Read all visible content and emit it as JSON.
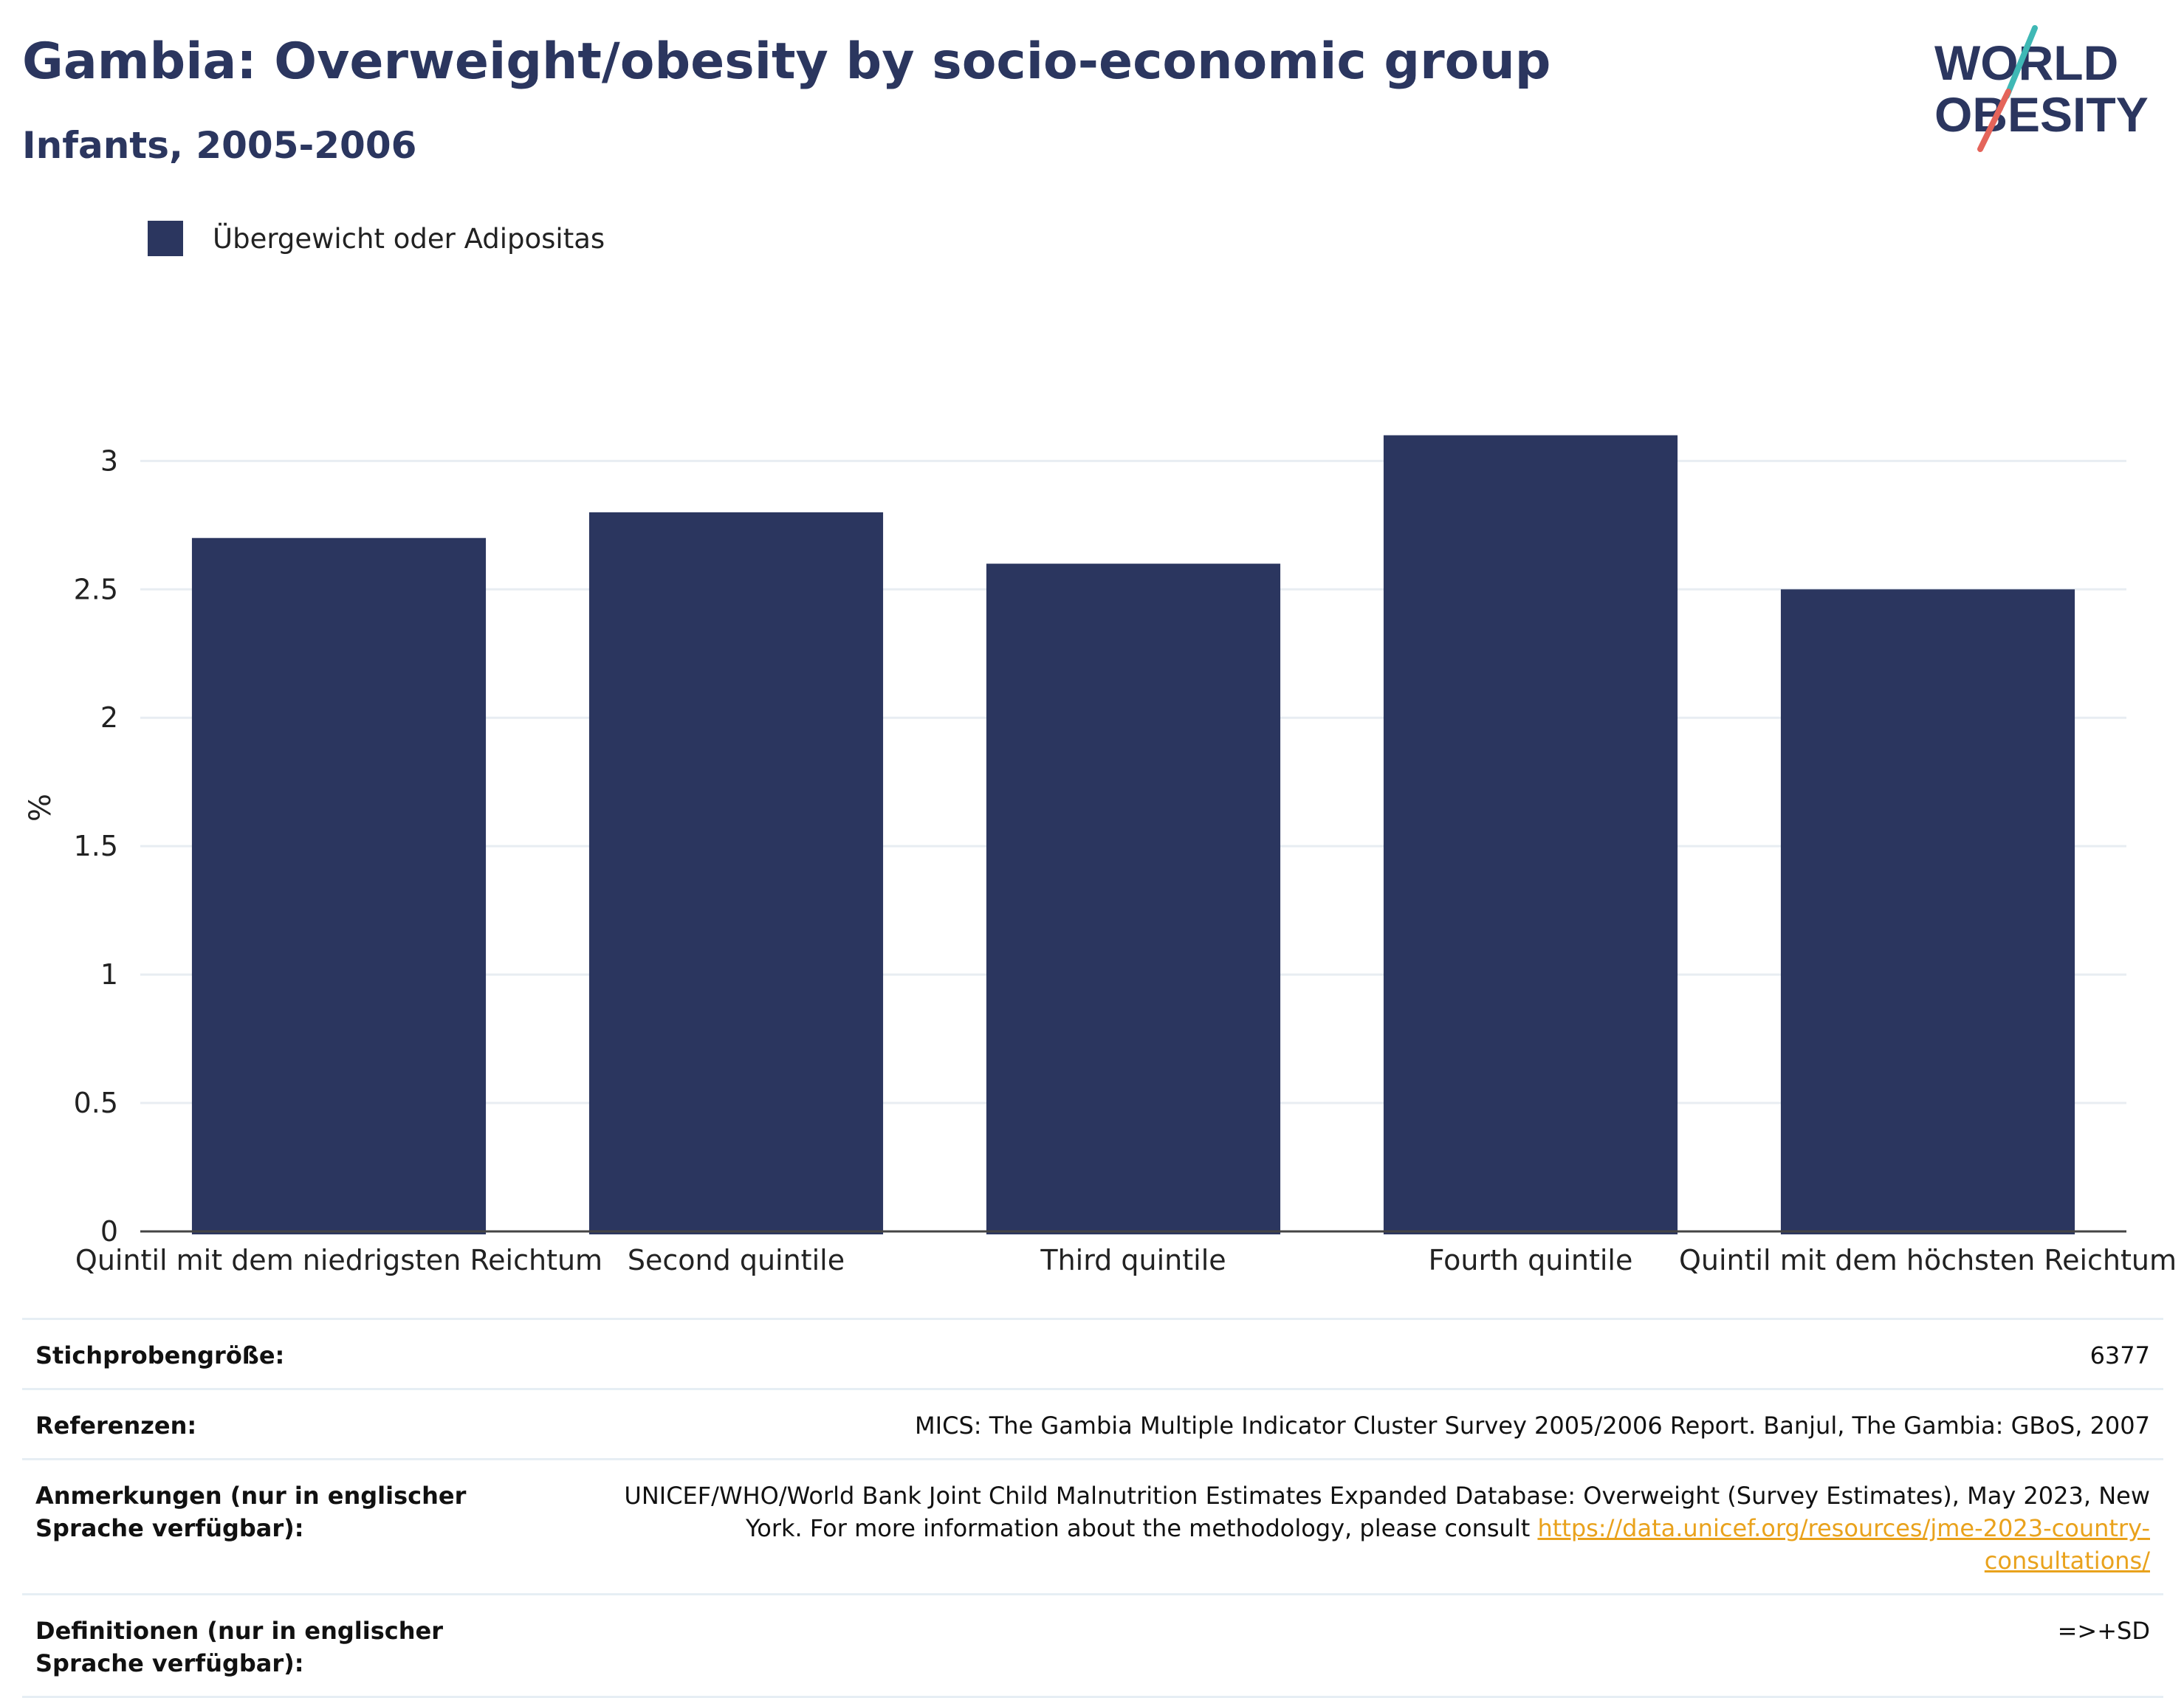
{
  "header": {
    "title": "Gambia: Overweight/obesity by socio-economic group",
    "subtitle": "Infants, 2005-2006"
  },
  "logo": {
    "line1": "WORLD",
    "line2": "OBESITY"
  },
  "legend": {
    "label": "Übergewicht oder Adipositas",
    "color": "#2b365f"
  },
  "chart_data": {
    "type": "bar",
    "categories": [
      "Quintil mit dem niedrigsten Reichtum",
      "Second quintile",
      "Third quintile",
      "Fourth quintile",
      "Quintil mit dem höchsten Reichtum"
    ],
    "series": [
      {
        "name": "Übergewicht oder Adipositas",
        "values": [
          2.7,
          2.8,
          2.6,
          3.1,
          2.5
        ],
        "color": "#2b365f"
      }
    ],
    "ylabel": "%",
    "ylim": [
      0,
      3.3
    ],
    "yticks": [
      0,
      0.5,
      1,
      1.5,
      2,
      2.5,
      3
    ],
    "ytick_labels": [
      "0",
      "0.5",
      "1",
      "1.5",
      "2",
      "2.5",
      "3"
    ],
    "grid": true,
    "legend_position": "top-left"
  },
  "info": {
    "rows": [
      {
        "key": "Stichprobengröße:",
        "value": "6377"
      },
      {
        "key": "Referenzen:",
        "value": "MICS: The Gambia Multiple Indicator Cluster Survey 2005/2006 Report. Banjul, The Gambia: GBoS, 2007"
      },
      {
        "key": "Anmerkungen (nur in englischer Sprache verfügbar):",
        "value": "UNICEF/WHO/World Bank Joint Child Malnutrition Estimates Expanded Database: Overweight (Survey Estimates), May 2023, New York. For more information about the methodology, please consult",
        "link": "https://data.unicef.org/resources/jme-2023-country-consultations/"
      },
      {
        "key": "Definitionen (nur in englischer Sprache verfügbar):",
        "value": "=>+SD"
      }
    ]
  }
}
